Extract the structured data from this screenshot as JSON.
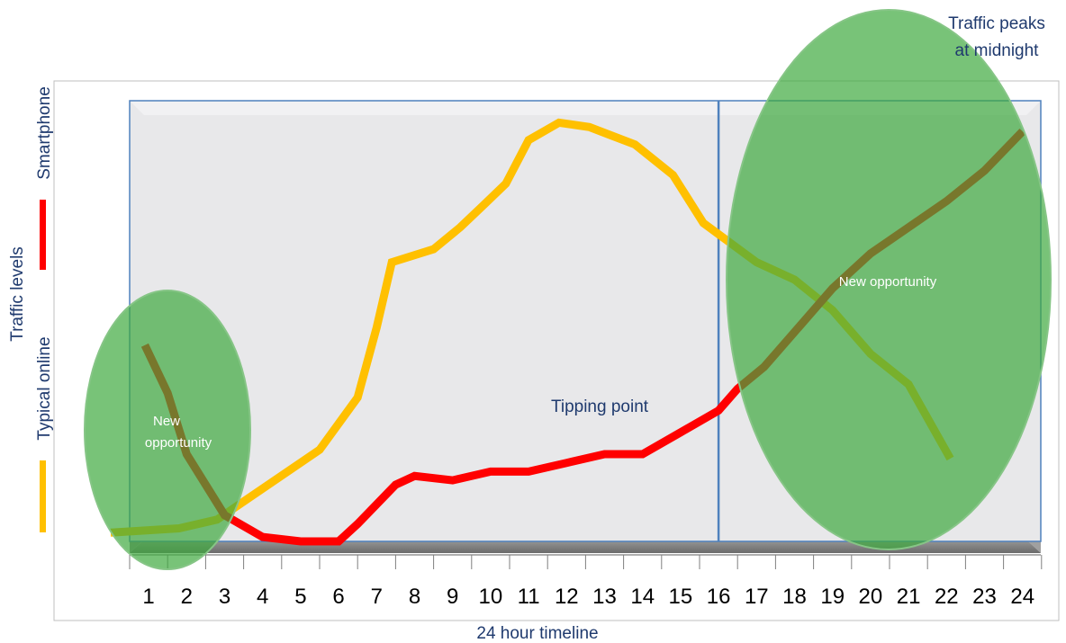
{
  "chart_data": {
    "type": "line",
    "xlabel": "24 hour timeline",
    "ylabel": "Traffic levels",
    "categories": [
      "1",
      "2",
      "3",
      "4",
      "5",
      "6",
      "7",
      "8",
      "9",
      "10",
      "11",
      "12",
      "13",
      "14",
      "15",
      "16",
      "17",
      "18",
      "19",
      "20",
      "21",
      "22",
      "23",
      "24"
    ],
    "xlim": [
      0.5,
      24.5
    ],
    "ylim": [
      0,
      100
    ],
    "grid": false,
    "legend": "left-vertical",
    "series": [
      {
        "name": "Typical online",
        "color": "#FFC000",
        "x": [
          0.0,
          1.8,
          2.8,
          5.5,
          6.5,
          7.0,
          7.4,
          8.5,
          9.2,
          9.8,
          10.4,
          11.0,
          11.8,
          12.6,
          13.2,
          13.8,
          14.8,
          15.6,
          17.0,
          18.0,
          19.0,
          20.0,
          21.0,
          22.1
        ],
        "values": [
          2,
          3,
          5,
          21,
          33,
          49,
          64,
          67,
          72,
          77,
          82,
          92,
          96,
          95,
          93,
          91,
          84,
          73,
          64,
          60,
          53,
          43,
          36,
          19
        ]
      },
      {
        "name": "Smartphone",
        "color": "#FF0000",
        "x": [
          0.9,
          1.5,
          2.0,
          3.0,
          4.0,
          5.0,
          6.0,
          6.5,
          7.5,
          8.0,
          9.0,
          10.0,
          11.0,
          12.0,
          13.0,
          14.0,
          15.0,
          16.0,
          16.5,
          17.2,
          18.0,
          19.0,
          20.0,
          21.0,
          22.0,
          23.0,
          24.0
        ],
        "values": [
          45,
          34,
          20,
          6,
          1,
          0,
          0,
          4,
          13,
          15,
          14,
          16,
          16,
          18,
          20,
          20,
          25,
          30,
          35,
          40,
          48,
          58,
          66,
          72,
          78,
          85,
          94
        ]
      }
    ],
    "annotations": {
      "tipping_point": "Tipping point",
      "new_opportunity_left": [
        "New",
        "opportunity"
      ],
      "new_opportunity_right": "New opportunity",
      "traffic_peak": [
        "Traffic peaks",
        "at midnight"
      ]
    },
    "tipping_x": 16,
    "colors": {
      "plot_bg": "#E8E8EA",
      "plot_border": "#4F81BD",
      "shadow": "#8C8C8C",
      "ellipse_fill": "#3FAA3F",
      "ellipse_stroke": "#86C586",
      "text_navy": "#1F3A6E",
      "overlap_line": "#6B4200"
    }
  }
}
